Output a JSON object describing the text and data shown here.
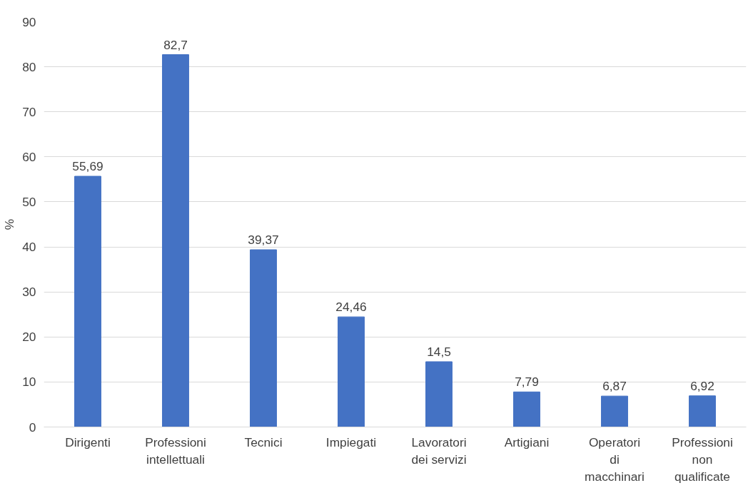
{
  "chart_data": {
    "type": "bar",
    "ylabel": "%",
    "categories": [
      "Dirigenti",
      "Professioni intellettuali",
      "Tecnici",
      "Impiegati",
      "Lavoratori dei servizi",
      "Artigiani",
      "Operatori di macchinari",
      "Professioni non qualificate"
    ],
    "values": [
      55.69,
      82.7,
      39.37,
      24.46,
      14.5,
      7.79,
      6.87,
      6.92
    ],
    "value_labels": [
      "55,69",
      "82,7",
      "39,37",
      "24,46",
      "14,5",
      "7,79",
      "6,87",
      "6,92"
    ],
    "color": "#4472c4",
    "ylim": [
      0,
      90
    ],
    "yticks": [
      0,
      10,
      20,
      30,
      40,
      50,
      60,
      70,
      80,
      90
    ],
    "grid": "y"
  }
}
